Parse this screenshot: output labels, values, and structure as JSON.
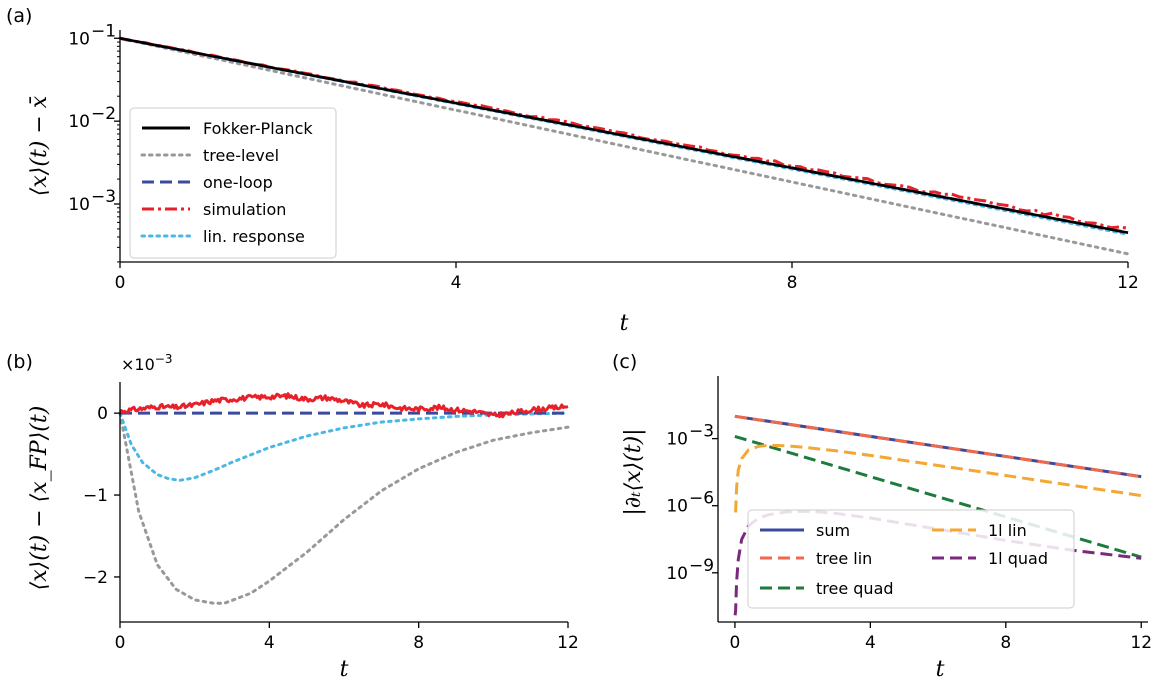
{
  "chart_data": [
    {
      "panel": "(a)",
      "type": "line",
      "xlabel": "t",
      "ylabel": "⟨x⟩(t) − x̄",
      "xlim": [
        0,
        12
      ],
      "ylim_log10": [
        -3.7,
        -0.9
      ],
      "yscale": "log",
      "xticks": [
        0,
        4,
        8,
        12
      ],
      "xtick_labels": [
        "0",
        "4",
        "8",
        "12"
      ],
      "yticks_log10": [
        -1,
        -2,
        -3
      ],
      "ytick_labels": [
        "10",
        "10",
        "10"
      ],
      "ytick_exponents": [
        "−1",
        "−2",
        "−3"
      ],
      "grid": false,
      "legend_position": "lower-left",
      "series": [
        {
          "name": "Fokker-Planck",
          "color": "#000000",
          "style": "solid",
          "x": [
            0,
            12
          ],
          "y": [
            0.1,
            0.00045
          ]
        },
        {
          "name": "tree-level",
          "color": "#999999",
          "style": "dotted",
          "x": [
            0,
            12
          ],
          "y": [
            0.1,
            0.00025
          ]
        },
        {
          "name": "one-loop",
          "color": "#3a4a9f",
          "style": "dashed",
          "x": [
            0,
            12
          ],
          "y": [
            0.1,
            0.00045
          ]
        },
        {
          "name": "simulation",
          "color": "#e8202a",
          "style": "dashdot",
          "x": [
            0,
            12
          ],
          "y": [
            0.1,
            0.0005
          ]
        },
        {
          "name": "lin. response",
          "color": "#4ab8e6",
          "style": "dotted",
          "x": [
            0,
            12
          ],
          "y": [
            0.1,
            0.00043
          ]
        }
      ]
    },
    {
      "panel": "(b)",
      "type": "line",
      "xlabel": "t",
      "ylabel": "⟨x⟩(t) − ⟨x_FP⟩(t)",
      "offset_text": "×10",
      "offset_exponent": "−3",
      "xlim": [
        0,
        12
      ],
      "ylim": [
        -2.55,
        0.38
      ],
      "xticks": [
        0,
        4,
        8,
        12
      ],
      "xtick_labels": [
        "0",
        "4",
        "8",
        "12"
      ],
      "yticks": [
        0,
        -1,
        -2
      ],
      "ytick_labels": [
        "0",
        "−1",
        "−2"
      ],
      "grid": false,
      "series": [
        {
          "ref": "tree-level",
          "color": "#999999",
          "style": "dotted",
          "x": [
            0,
            0.5,
            1,
            1.5,
            2,
            2.5,
            2.8,
            3.5,
            4,
            5,
            6,
            7,
            8,
            9,
            10,
            11,
            12
          ],
          "y": [
            0,
            -1.2,
            -1.85,
            -2.15,
            -2.28,
            -2.32,
            -2.32,
            -2.2,
            -2.05,
            -1.7,
            -1.3,
            -0.95,
            -0.68,
            -0.48,
            -0.33,
            -0.24,
            -0.17
          ]
        },
        {
          "ref": "lin. response",
          "color": "#4ab8e6",
          "style": "dotted",
          "x": [
            0,
            0.3,
            0.6,
            1,
            1.3,
            1.6,
            2,
            2.5,
            3,
            4,
            5,
            6,
            7,
            8,
            9,
            10,
            12
          ],
          "y": [
            0,
            -0.38,
            -0.6,
            -0.75,
            -0.8,
            -0.82,
            -0.79,
            -0.7,
            -0.6,
            -0.42,
            -0.28,
            -0.18,
            -0.11,
            -0.07,
            -0.04,
            -0.02,
            0
          ]
        },
        {
          "ref": "one-loop",
          "color": "#3a4a9f",
          "style": "dashed",
          "x": [
            0,
            12
          ],
          "y": [
            0,
            0
          ]
        },
        {
          "ref": "simulation",
          "color": "#e8202a",
          "style": "solid",
          "x": [
            0,
            0.5,
            1,
            1.5,
            2,
            2.5,
            3,
            3.5,
            4,
            4.5,
            5,
            5.5,
            6,
            6.5,
            7,
            7.5,
            8,
            8.5,
            9,
            9.5,
            10,
            10.5,
            11,
            11.5,
            12
          ],
          "y": [
            0.02,
            0.05,
            0.08,
            0.07,
            0.1,
            0.15,
            0.17,
            0.19,
            0.2,
            0.21,
            0.17,
            0.19,
            0.15,
            0.09,
            0.11,
            0.06,
            0.05,
            0.07,
            0.04,
            0.02,
            -0.03,
            0.0,
            0.04,
            0.06,
            0.08
          ]
        }
      ]
    },
    {
      "panel": "(c)",
      "type": "line",
      "xlabel": "t",
      "ylabel": "|∂ₜ⟨x⟩(t)|",
      "xlim": [
        -0.5,
        12.2
      ],
      "ylim_log10": [
        -11.2,
        -0.2
      ],
      "yscale": "log",
      "xticks": [
        0,
        4,
        8,
        12
      ],
      "xtick_labels": [
        "0",
        "4",
        "8",
        "12"
      ],
      "yticks_log10": [
        -3,
        -6,
        -9
      ],
      "ytick_labels": [
        "10",
        "10",
        "10"
      ],
      "ytick_exponents": [
        "−3",
        "−6",
        "−9"
      ],
      "grid": false,
      "legend_position": "lower-left",
      "legend_columns": 2,
      "series": [
        {
          "name": "sum",
          "color": "#3a4a9f",
          "style": "solid",
          "x": [
            0,
            12
          ],
          "y_log10": [
            -2.0,
            -4.7
          ]
        },
        {
          "name": "tree lin",
          "color": "#ef6a4c",
          "style": "dashed",
          "x": [
            0,
            12
          ],
          "y_log10": [
            -2.0,
            -4.7
          ]
        },
        {
          "name": "tree quad",
          "color": "#1f7a3e",
          "style": "dashed",
          "x": [
            0,
            12
          ],
          "y_log10": [
            -2.9,
            -8.3
          ]
        },
        {
          "name": "1l lin",
          "color": "#f4a732",
          "style": "dashed",
          "x": [
            0.02,
            0.05,
            0.1,
            0.2,
            0.4,
            0.7,
            1,
            1.5,
            2,
            3,
            4,
            6,
            8,
            10,
            12
          ],
          "y_log10": [
            -6.3,
            -5.2,
            -4.4,
            -3.9,
            -3.5,
            -3.35,
            -3.3,
            -3.32,
            -3.38,
            -3.55,
            -3.75,
            -4.2,
            -4.65,
            -5.1,
            -5.55
          ]
        },
        {
          "name": "1l quad",
          "color": "#7a2a7e",
          "style": "dashed",
          "x": [
            0.02,
            0.05,
            0.1,
            0.2,
            0.4,
            0.7,
            1,
            1.5,
            2,
            2.5,
            3,
            4,
            6,
            8,
            10,
            12
          ],
          "y_log10": [
            -10.7,
            -9.4,
            -8.4,
            -7.5,
            -6.9,
            -6.55,
            -6.4,
            -6.28,
            -6.25,
            -6.28,
            -6.35,
            -6.55,
            -7.05,
            -7.55,
            -8.0,
            -8.35
          ]
        }
      ]
    }
  ]
}
